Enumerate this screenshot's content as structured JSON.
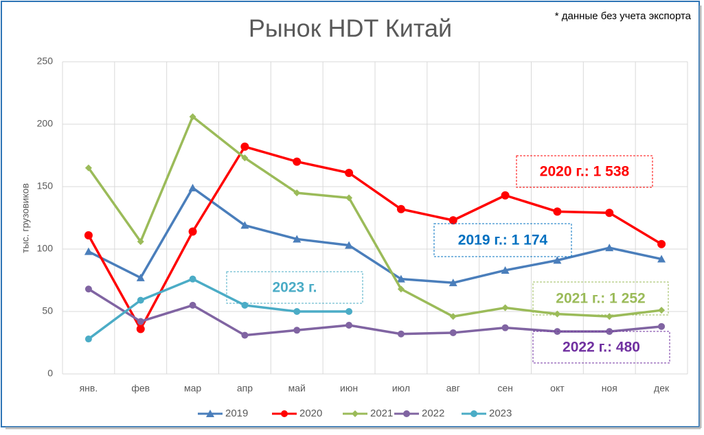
{
  "chart_data": {
    "type": "line",
    "title": "Рынок HDT Китай",
    "note": "* данные без учета экспорта",
    "ylabel": "тыс. грузовиков",
    "categories": [
      "янв.",
      "фев",
      "мар",
      "апр",
      "май",
      "июн",
      "июл",
      "авг",
      "сен",
      "окт",
      "ноя",
      "дек"
    ],
    "ylim": [
      0,
      250
    ],
    "yticks": [
      0,
      50,
      100,
      150,
      200,
      250
    ],
    "grid": true,
    "legend": "bottom",
    "series": [
      {
        "name": "2019",
        "color": "#4a7ebb",
        "marker": "triangle",
        "values": [
          98,
          77,
          149,
          119,
          108,
          103,
          76,
          73,
          83,
          91,
          101,
          92
        ]
      },
      {
        "name": "2020",
        "color": "#ff0000",
        "marker": "circle",
        "values": [
          111,
          36,
          114,
          182,
          170,
          161,
          132,
          123,
          143,
          130,
          129,
          104
        ]
      },
      {
        "name": "2021",
        "color": "#9bbb59",
        "marker": "diamond",
        "values": [
          165,
          106,
          206,
          173,
          145,
          141,
          68,
          46,
          53,
          48,
          46,
          51
        ]
      },
      {
        "name": "2022",
        "color": "#8064a2",
        "marker": "circle",
        "values": [
          68,
          42,
          55,
          31,
          35,
          39,
          32,
          33,
          37,
          34,
          34,
          38
        ]
      },
      {
        "name": "2023",
        "color": "#4bacc6",
        "marker": "circle",
        "values": [
          28,
          59,
          76,
          55,
          50,
          50,
          null,
          null,
          null,
          null,
          null,
          null
        ]
      }
    ],
    "annotations": [
      {
        "text": "2020 г.:  1 538",
        "color": "#ff0000"
      },
      {
        "text": "2019 г.: 1 174",
        "color": "#0070c0"
      },
      {
        "text": "2023 г.",
        "color": "#4bacc6"
      },
      {
        "text": "2021 г.: 1 252",
        "color": "#9bbb59"
      },
      {
        "text": "2022 г.: 480",
        "color": "#7030a0"
      }
    ]
  }
}
